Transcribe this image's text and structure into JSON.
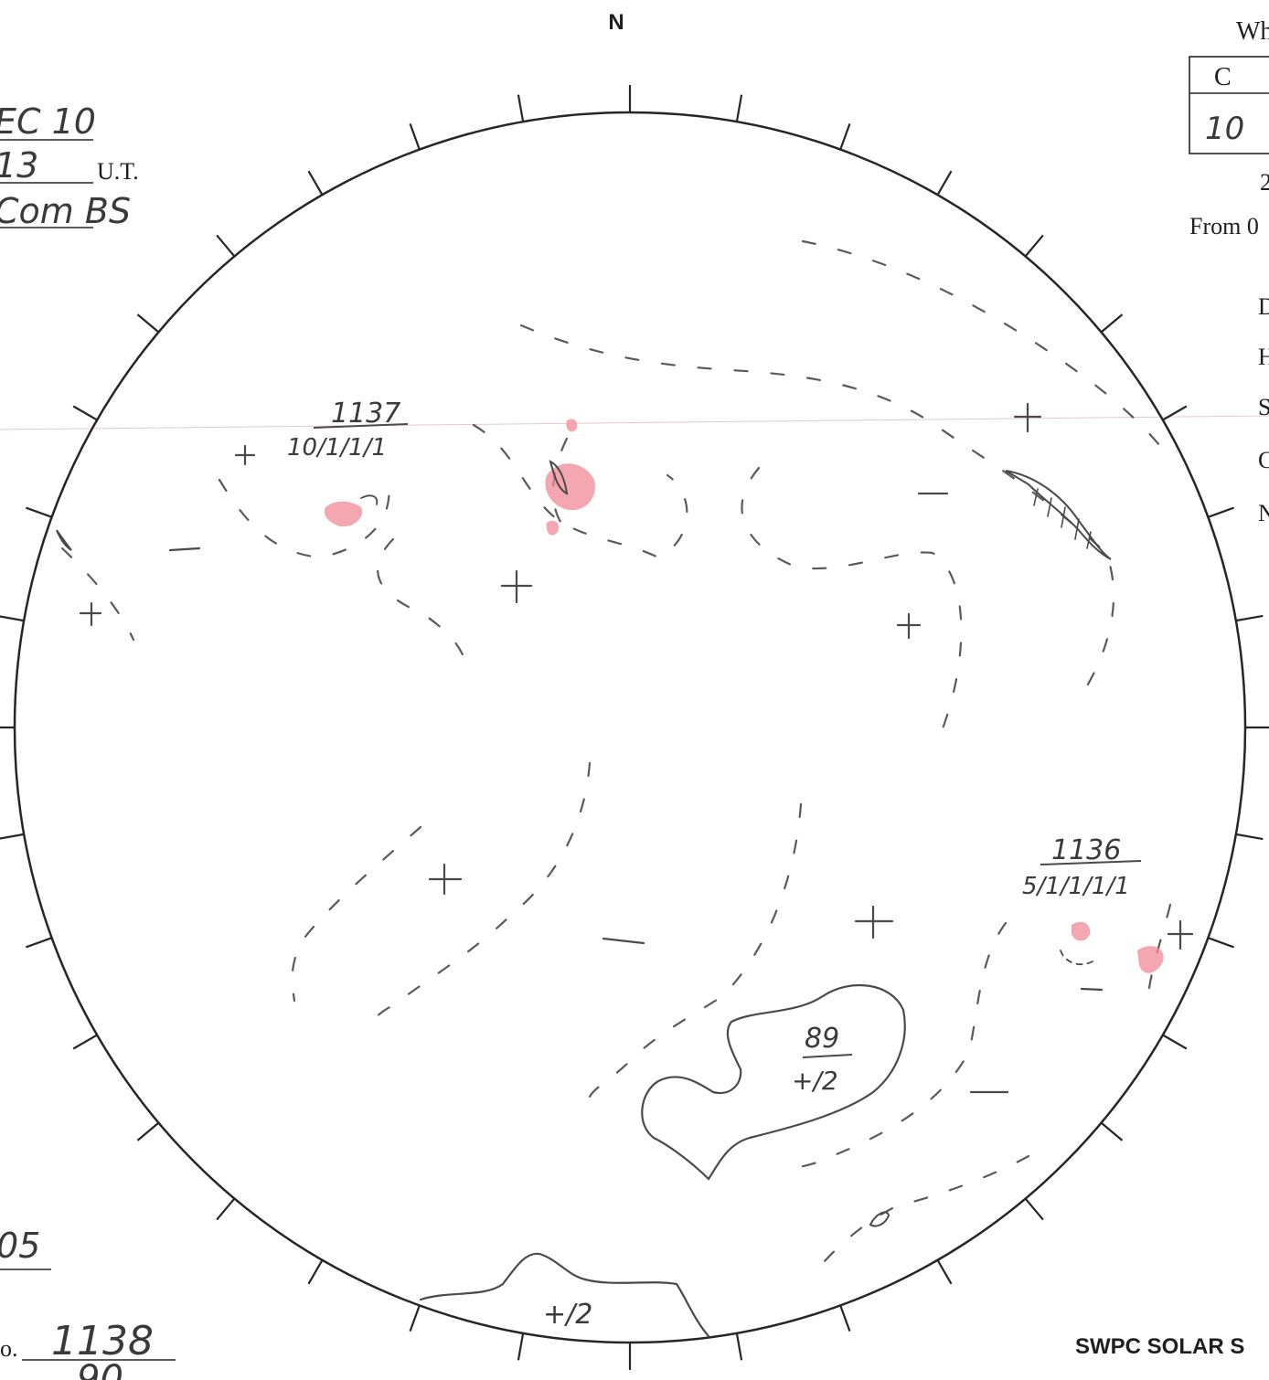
{
  "header": {
    "north_label": "N",
    "top_right_fragment": "Wh",
    "table": {
      "col_label": "C",
      "col_value": "10"
    },
    "line_2_fragment": "2",
    "from_fragment": "From 0",
    "side_letters": [
      "D",
      "H",
      "S",
      "C",
      "N"
    ]
  },
  "left_notes": {
    "line1": "EC 10",
    "line2": "13",
    "ut_label": "U.T.",
    "line3": "Com BS",
    "bottom_value": "05",
    "no_prefix": "o.",
    "no_value": "1138",
    "no_value_below": "90"
  },
  "regions": [
    {
      "id": "1137",
      "number": "1137",
      "classification": "10/1/1/1"
    },
    {
      "id": "1136",
      "number": "1136",
      "classification": "5/1/1/1/1"
    }
  ],
  "filaments": [
    {
      "id": "center-filament",
      "label_top": "89",
      "label_bottom": "+/2"
    },
    {
      "id": "limb-filament",
      "label": "+/2"
    }
  ],
  "footer": {
    "brand": "SWPC SOLAR S"
  },
  "colors": {
    "ink": "#4a4a4a",
    "plage": "#f08a95",
    "print": "#1e1e1e"
  }
}
